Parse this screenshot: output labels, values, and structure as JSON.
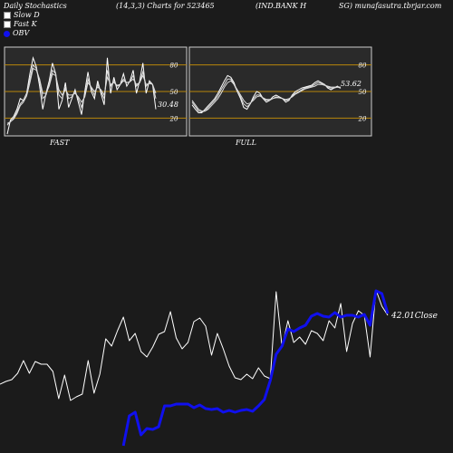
{
  "header": {
    "left": "Daily Stochastics",
    "middle": "(14,3,3) Charts for 523465",
    "right": "(IND.BANK H",
    "far": "SG) munafasutra.tbrjar.com"
  },
  "legend": [
    "Slow  D",
    "Fast K",
    "OBV"
  ],
  "colors": {
    "background": "#1b1b1b",
    "panel": "#2a2a2a",
    "line": "#ffffff",
    "obv": "#1010ee",
    "level": "#b8860b"
  },
  "chart_data": [
    {
      "type": "line",
      "title": "FAST",
      "ylim": [
        0,
        100
      ],
      "levels": [
        20,
        50,
        80
      ],
      "level_labels": [
        "80",
        "50",
        "20"
      ],
      "last_label": "30.48",
      "series": [
        {
          "values": [
            2,
            18,
            22,
            30,
            42,
            40,
            48,
            70,
            88,
            78,
            56,
            30,
            48,
            62,
            82,
            70,
            30,
            40,
            60,
            32,
            42,
            52,
            38,
            24,
            50,
            72,
            50,
            42,
            62,
            48,
            35,
            88,
            48,
            66,
            52,
            58,
            70,
            56,
            62,
            74,
            48,
            62,
            82,
            48,
            62,
            58,
            30
          ]
        },
        {
          "values": [
            12,
            16,
            20,
            27,
            36,
            40,
            48,
            64,
            80,
            76,
            62,
            42,
            46,
            58,
            74,
            70,
            46,
            42,
            54,
            42,
            44,
            50,
            42,
            32,
            46,
            64,
            54,
            46,
            58,
            50,
            42,
            74,
            56,
            62,
            56,
            58,
            64,
            60,
            61,
            68,
            56,
            60,
            72,
            56,
            60,
            58,
            42
          ]
        },
        {
          "values": [
            14,
            16,
            19,
            25,
            34,
            38,
            45,
            60,
            76,
            74,
            64,
            48,
            48,
            56,
            70,
            68,
            52,
            46,
            52,
            46,
            46,
            48,
            44,
            38,
            44,
            60,
            55,
            50,
            55,
            52,
            46,
            66,
            58,
            60,
            57,
            58,
            62,
            60,
            61,
            64,
            58,
            60,
            68,
            58,
            59,
            58,
            48
          ]
        }
      ]
    },
    {
      "type": "line",
      "title": "FULL",
      "ylim": [
        0,
        100
      ],
      "levels": [
        20,
        50,
        80
      ],
      "level_labels": [
        "80",
        "50",
        "20"
      ],
      "last_label": "53.62",
      "series": [
        {
          "values": [
            35,
            30,
            26,
            26,
            30,
            34,
            38,
            42,
            48,
            55,
            62,
            68,
            66,
            60,
            50,
            42,
            32,
            30,
            36,
            44,
            50,
            48,
            42,
            38,
            40,
            44,
            46,
            44,
            42,
            38,
            40,
            46,
            50,
            52,
            54,
            55,
            56,
            57,
            60,
            62,
            60,
            58,
            54,
            52,
            54,
            56,
            53.62
          ]
        },
        {
          "values": [
            38,
            33,
            28,
            27,
            28,
            32,
            36,
            40,
            45,
            52,
            58,
            64,
            64,
            58,
            50,
            44,
            36,
            33,
            36,
            42,
            46,
            46,
            42,
            40,
            40,
            42,
            44,
            43,
            42,
            40,
            41,
            45,
            48,
            50,
            52,
            54,
            55,
            56,
            58,
            60,
            59,
            58,
            55,
            54,
            54,
            55,
            54
          ]
        },
        {
          "values": [
            40,
            35,
            30,
            28,
            28,
            30,
            34,
            38,
            42,
            48,
            55,
            60,
            62,
            58,
            52,
            46,
            40,
            36,
            37,
            40,
            44,
            45,
            43,
            41,
            41,
            42,
            43,
            43,
            42,
            41,
            42,
            44,
            47,
            49,
            51,
            53,
            54,
            55,
            56,
            58,
            58,
            57,
            56,
            55,
            55,
            55,
            55
          ]
        }
      ]
    },
    {
      "type": "line",
      "last_label": "42.01",
      "last_label_suffix": "Close",
      "series": [
        {
          "name": "Close",
          "color": "#ffffff",
          "values": [
            424,
            421,
            419,
            412,
            398,
            412,
            399,
            402,
            402,
            410,
            440,
            414,
            442,
            438,
            435,
            398,
            434,
            413,
            374,
            382,
            365,
            350,
            376,
            368,
            388,
            394,
            383,
            369,
            366,
            344,
            373,
            385,
            378,
            355,
            351,
            360,
            392,
            368,
            385,
            404,
            417,
            419,
            413,
            418,
            406,
            415,
            418,
            322,
            383,
            354,
            378,
            372,
            380,
            365,
            368,
            376,
            354,
            362,
            335,
            388,
            357,
            343,
            348,
            394,
            320,
            338,
            348
          ]
        },
        {
          "name": "OBV",
          "color": "#1010ee",
          "values": [
            null,
            null,
            null,
            null,
            null,
            null,
            null,
            null,
            null,
            null,
            null,
            null,
            null,
            null,
            null,
            null,
            null,
            null,
            null,
            null,
            null,
            492,
            459,
            455,
            480,
            473,
            474,
            471,
            448,
            448,
            446,
            446,
            446,
            450,
            447,
            451,
            452,
            451,
            455,
            453,
            455,
            453,
            452,
            454,
            448,
            441,
            420,
            391,
            382,
            363,
            366,
            362,
            359,
            349,
            346,
            349,
            350,
            345,
            350,
            348,
            348,
            350,
            347,
            359,
            321,
            324,
            346
          ]
        }
      ]
    }
  ]
}
